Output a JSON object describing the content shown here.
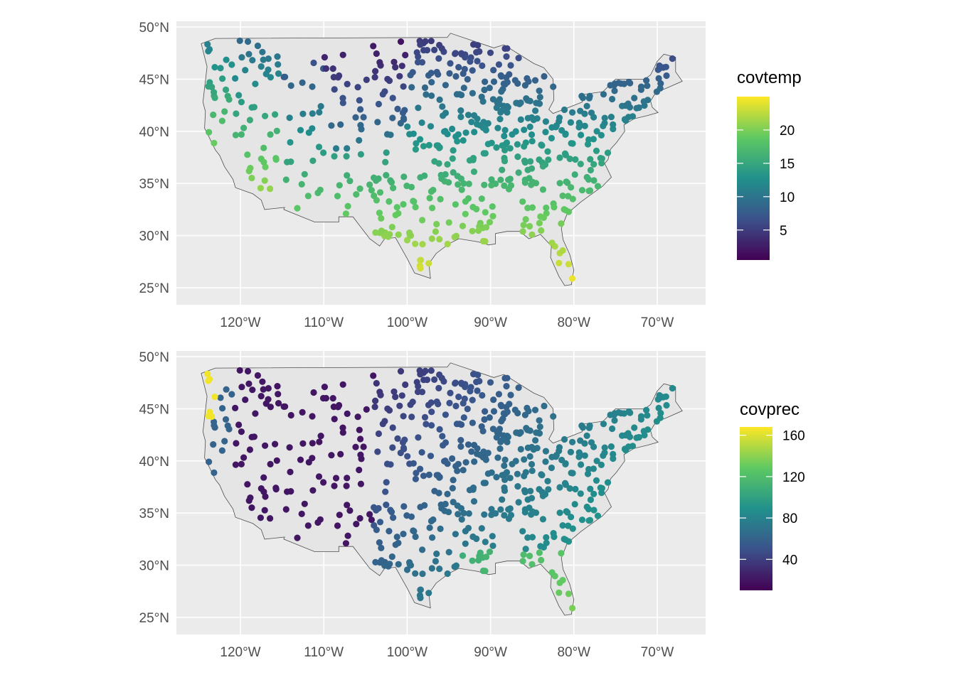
{
  "panels": [
    {
      "id": "temp",
      "legend_title": "covtemp",
      "legend_ticks": [
        {
          "value": 20,
          "label": "20"
        },
        {
          "value": 15,
          "label": "15"
        },
        {
          "value": 10,
          "label": "10"
        },
        {
          "value": 5,
          "label": "5"
        }
      ],
      "value_range": [
        0.5,
        25
      ],
      "lat_ticks": [
        "50°N",
        "45°N",
        "40°N",
        "35°N",
        "30°N",
        "25°N"
      ],
      "lon_ticks": [
        "120°W",
        "110°W",
        "100°W",
        "90°W",
        "80°W",
        "70°W"
      ]
    },
    {
      "id": "prec",
      "legend_title": "covprec",
      "legend_ticks": [
        {
          "value": 160,
          "label": "160"
        },
        {
          "value": 120,
          "label": "120"
        },
        {
          "value": 80,
          "label": "80"
        },
        {
          "value": 40,
          "label": "40"
        }
      ],
      "value_range": [
        10,
        168
      ],
      "lat_ticks": [
        "50°N",
        "45°N",
        "40°N",
        "35°N",
        "30°N",
        "25°N"
      ],
      "lon_ticks": [
        "120°W",
        "110°W",
        "100°W",
        "90°W",
        "80°W",
        "70°W"
      ]
    }
  ],
  "colors": {
    "panel_bg": "#ebebeb",
    "grid": "#ffffff",
    "land": "#e5e5e5",
    "border": "#4d4d4d",
    "viridis": [
      "#440154",
      "#3b528b",
      "#21918c",
      "#5ec962",
      "#fde725"
    ]
  }
}
